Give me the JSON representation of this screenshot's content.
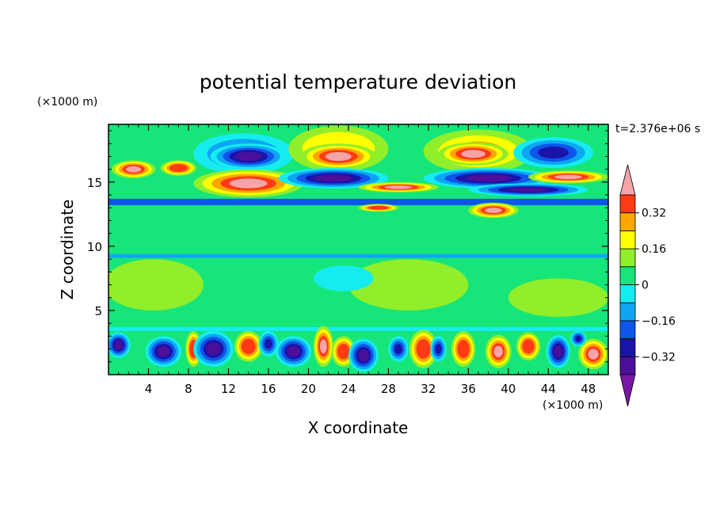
{
  "chart_data": {
    "type": "heatmap",
    "title": "potential temperature deviation",
    "time_label": "t=2.376e+06 s",
    "xlabel": "X coordinate",
    "ylabel": "Z coordinate",
    "x_unit": "(×1000 m)",
    "y_unit": "(×1000 m)",
    "xlim": [
      0,
      50
    ],
    "ylim": [
      0,
      19.5
    ],
    "x_ticks": [
      4,
      8,
      12,
      16,
      20,
      24,
      28,
      32,
      36,
      40,
      44,
      48
    ],
    "y_ticks": [
      5,
      10,
      15
    ],
    "colorbar": {
      "levels": [
        -0.4,
        -0.32,
        -0.24,
        -0.16,
        -0.08,
        0,
        0.08,
        0.16,
        0.24,
        0.32,
        0.4
      ],
      "tick_labels": [
        "0.32",
        "0.16",
        "0",
        "−0.16",
        "−0.32"
      ],
      "tick_values": [
        0.32,
        0.16,
        0,
        -0.16,
        -0.32
      ],
      "colors": [
        "#7a16a6",
        "#4b0f9a",
        "#1b14a8",
        "#0e55ea",
        "#0ea6f2",
        "#16ecf0",
        "#16e57a",
        "#90ee2a",
        "#ffff00",
        "#ffa500",
        "#ff3a14",
        "#f5a4a8"
      ]
    },
    "fields": {
      "background_value": 0.02,
      "bands": [
        {
          "z_min": 13.2,
          "z_max": 13.7,
          "value": -0.2
        },
        {
          "z_min": 12.6,
          "z_max": 13.1,
          "value": 0.0
        },
        {
          "z_min": 9.1,
          "z_max": 9.4,
          "value": -0.12
        },
        {
          "z_min": 3.4,
          "z_max": 3.7,
          "value": -0.04
        }
      ],
      "blobs": [
        {
          "x": 2.5,
          "z": 16.0,
          "rx": 2.2,
          "rz": 0.7,
          "value": 0.44
        },
        {
          "x": 7.0,
          "z": 16.1,
          "rx": 1.8,
          "rz": 0.6,
          "value": 0.36
        },
        {
          "x": 13.5,
          "z": 17.2,
          "rx": 5.0,
          "rz": 1.6,
          "value": -0.22
        },
        {
          "x": 14.0,
          "z": 17.0,
          "rx": 3.8,
          "rz": 1.0,
          "value": -0.42
        },
        {
          "x": 23.0,
          "z": 17.6,
          "rx": 5.0,
          "rz": 1.8,
          "value": 0.2
        },
        {
          "x": 23.0,
          "z": 17.0,
          "rx": 3.8,
          "rz": 1.0,
          "value": 0.45
        },
        {
          "x": 37.0,
          "z": 17.4,
          "rx": 5.5,
          "rz": 1.7,
          "value": 0.24
        },
        {
          "x": 36.5,
          "z": 17.2,
          "rx": 3.5,
          "rz": 0.9,
          "value": 0.45
        },
        {
          "x": 44.5,
          "z": 17.3,
          "rx": 4.0,
          "rz": 1.2,
          "value": -0.3
        },
        {
          "x": 14.0,
          "z": 14.9,
          "rx": 5.5,
          "rz": 1.1,
          "value": 0.44
        },
        {
          "x": 22.5,
          "z": 15.3,
          "rx": 5.5,
          "rz": 0.8,
          "value": -0.42
        },
        {
          "x": 29.0,
          "z": 14.6,
          "rx": 4.0,
          "rz": 0.4,
          "value": 0.42
        },
        {
          "x": 38.0,
          "z": 15.3,
          "rx": 6.5,
          "rz": 0.8,
          "value": -0.42
        },
        {
          "x": 42.0,
          "z": 14.4,
          "rx": 6.0,
          "rz": 0.5,
          "value": -0.38
        },
        {
          "x": 46.0,
          "z": 15.4,
          "rx": 4.0,
          "rz": 0.5,
          "value": 0.44
        },
        {
          "x": 38.5,
          "z": 12.8,
          "rx": 2.5,
          "rz": 0.6,
          "value": 0.44
        },
        {
          "x": 27.0,
          "z": 13.0,
          "rx": 2.0,
          "rz": 0.3,
          "value": 0.36
        },
        {
          "x": 4.5,
          "z": 7.0,
          "rx": 5.0,
          "rz": 2.0,
          "value": 0.1
        },
        {
          "x": 30.0,
          "z": 7.0,
          "rx": 6.0,
          "rz": 2.0,
          "value": 0.1
        },
        {
          "x": 45.0,
          "z": 6.0,
          "rx": 5.0,
          "rz": 1.5,
          "value": 0.1
        },
        {
          "x": 23.5,
          "z": 7.5,
          "rx": 3.0,
          "rz": 1.0,
          "value": -0.03
        },
        {
          "x": 1.0,
          "z": 2.3,
          "rx": 1.2,
          "rz": 1.0,
          "value": -0.34
        },
        {
          "x": 5.5,
          "z": 1.8,
          "rx": 1.8,
          "rz": 1.2,
          "value": -0.38
        },
        {
          "x": 8.5,
          "z": 2.0,
          "rx": 0.8,
          "rz": 1.4,
          "value": 0.36
        },
        {
          "x": 10.5,
          "z": 2.0,
          "rx": 2.0,
          "rz": 1.4,
          "value": -0.42
        },
        {
          "x": 14.0,
          "z": 2.2,
          "rx": 1.4,
          "rz": 1.2,
          "value": 0.36
        },
        {
          "x": 16.0,
          "z": 2.4,
          "rx": 1.0,
          "rz": 1.0,
          "value": -0.3
        },
        {
          "x": 18.5,
          "z": 1.8,
          "rx": 1.8,
          "rz": 1.2,
          "value": -0.42
        },
        {
          "x": 21.5,
          "z": 2.2,
          "rx": 1.0,
          "rz": 1.6,
          "value": 0.44
        },
        {
          "x": 23.5,
          "z": 1.8,
          "rx": 1.2,
          "rz": 1.2,
          "value": 0.36
        },
        {
          "x": 25.5,
          "z": 1.5,
          "rx": 1.5,
          "rz": 1.3,
          "value": -0.42
        },
        {
          "x": 29.0,
          "z": 2.0,
          "rx": 1.0,
          "rz": 1.0,
          "value": -0.3
        },
        {
          "x": 31.5,
          "z": 2.0,
          "rx": 1.4,
          "rz": 1.5,
          "value": 0.36
        },
        {
          "x": 33.0,
          "z": 2.0,
          "rx": 0.8,
          "rz": 1.0,
          "value": -0.28
        },
        {
          "x": 35.5,
          "z": 2.0,
          "rx": 1.2,
          "rz": 1.4,
          "value": 0.36
        },
        {
          "x": 39.0,
          "z": 1.8,
          "rx": 1.3,
          "rz": 1.3,
          "value": 0.44
        },
        {
          "x": 42.0,
          "z": 2.2,
          "rx": 1.2,
          "rz": 1.1,
          "value": 0.36
        },
        {
          "x": 45.0,
          "z": 1.8,
          "rx": 1.2,
          "rz": 1.3,
          "value": -0.42
        },
        {
          "x": 48.5,
          "z": 1.6,
          "rx": 1.5,
          "rz": 1.2,
          "value": 0.44
        },
        {
          "x": 47.0,
          "z": 2.8,
          "rx": 0.8,
          "rz": 0.6,
          "value": -0.3
        }
      ]
    }
  }
}
